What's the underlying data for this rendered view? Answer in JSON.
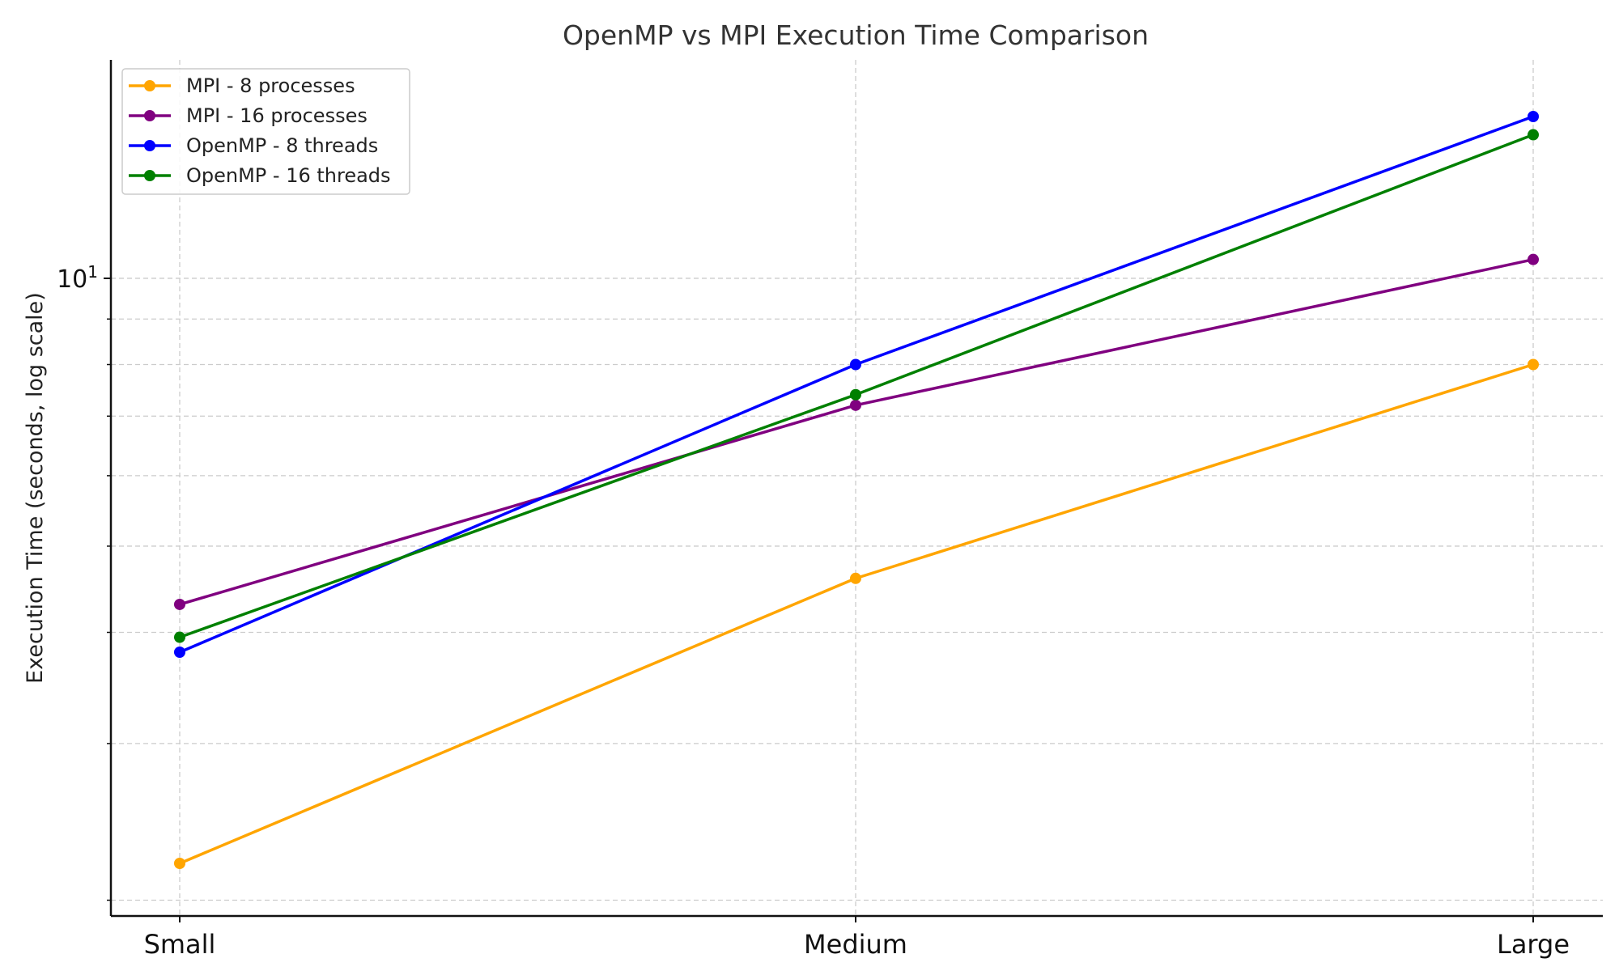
{
  "chart_data": {
    "type": "line",
    "title": "OpenMP vs MPI Execution Time Comparison",
    "xlabel": "",
    "ylabel": "Execution Time (seconds, log scale)",
    "yscale": "log",
    "ylim": [
      1.92,
      17.6
    ],
    "yticks": [
      {
        "value": 10,
        "label": "10",
        "exponent": "1"
      }
    ],
    "categories": [
      "Small",
      "Medium",
      "Large"
    ],
    "grid": true,
    "legend_position": "top-left",
    "series": [
      {
        "name": "MPI - 8 processes",
        "color": "#FFA500",
        "values": [
          2.2,
          4.6,
          8.0
        ]
      },
      {
        "name": "MPI - 16 processes",
        "color": "#800080",
        "values": [
          4.3,
          7.2,
          10.5
        ]
      },
      {
        "name": "OpenMP - 8 threads",
        "color": "#0000FF",
        "values": [
          3.8,
          8.0,
          15.2
        ]
      },
      {
        "name": "OpenMP - 16 threads",
        "color": "#008000",
        "values": [
          3.95,
          7.4,
          14.5
        ]
      }
    ]
  }
}
